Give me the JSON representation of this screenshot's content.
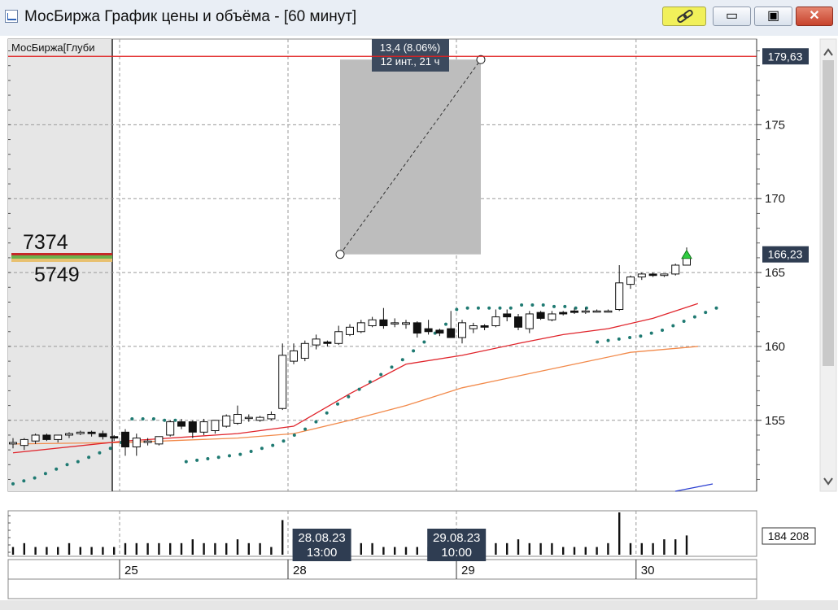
{
  "window": {
    "title": "МосБиржа График цены и объёма - [60 минут]",
    "icons": [
      "chart-app-icon",
      "link-icon",
      "minimize-icon",
      "maximize-icon",
      "close-icon"
    ],
    "controls": {
      "minimize": "▭",
      "maximize": "▣",
      "close": "✕"
    }
  },
  "chart_data": {
    "type": "candlestick",
    "panel_label": "МосБиржа[Глуби",
    "y_ticks": [
      "175",
      "170",
      "165",
      "160",
      "155"
    ],
    "ylim": [
      150.2,
      180.8
    ],
    "grid": true,
    "price_line": {
      "label": "179,63",
      "value": 179.63,
      "color": "#e02020"
    },
    "last_price": {
      "label": "166,23",
      "value": 166.23
    },
    "order_book": {
      "bid": "7374",
      "ask": "5749"
    },
    "measurement": {
      "line1": "13,4 (8.06%)",
      "line2": "12 инт., 21 ч",
      "from": 166.23,
      "to": 179.63
    },
    "x_labels": [
      "25",
      "28",
      "29",
      "30"
    ],
    "date_tags": [
      {
        "date": "28.08.23",
        "time": "13:00"
      },
      {
        "date": "29.08.23",
        "time": "10:00"
      }
    ],
    "volume_label": "184 208",
    "candles": [
      {
        "o": 153.4,
        "h": 153.8,
        "l": 153.1,
        "c": 153.5
      },
      {
        "o": 153.3,
        "h": 153.8,
        "l": 153.0,
        "c": 153.7
      },
      {
        "o": 153.6,
        "h": 154.1,
        "l": 153.4,
        "c": 154.0
      },
      {
        "o": 154.0,
        "h": 154.1,
        "l": 153.6,
        "c": 153.7
      },
      {
        "o": 153.7,
        "h": 154.0,
        "l": 153.5,
        "c": 154.0
      },
      {
        "o": 154.0,
        "h": 154.2,
        "l": 153.8,
        "c": 154.1
      },
      {
        "o": 154.1,
        "h": 154.3,
        "l": 154.0,
        "c": 154.2
      },
      {
        "o": 154.2,
        "h": 154.3,
        "l": 153.9,
        "c": 154.1
      },
      {
        "o": 154.1,
        "h": 154.3,
        "l": 153.7,
        "c": 153.9
      },
      {
        "o": 153.9,
        "h": 154.0,
        "l": 153.6,
        "c": 153.8
      },
      {
        "o": 154.2,
        "h": 154.4,
        "l": 152.6,
        "c": 153.2
      },
      {
        "o": 153.2,
        "h": 154.1,
        "l": 152.6,
        "c": 153.8
      },
      {
        "o": 153.5,
        "h": 153.8,
        "l": 153.3,
        "c": 153.6
      },
      {
        "o": 153.4,
        "h": 153.8,
        "l": 153.3,
        "c": 153.9
      },
      {
        "o": 154.0,
        "h": 155.0,
        "l": 153.9,
        "c": 154.9
      },
      {
        "o": 154.9,
        "h": 155.1,
        "l": 154.4,
        "c": 154.6
      },
      {
        "o": 154.9,
        "h": 155.0,
        "l": 153.8,
        "c": 154.2
      },
      {
        "o": 154.2,
        "h": 155.1,
        "l": 154.0,
        "c": 154.9
      },
      {
        "o": 154.3,
        "h": 155.0,
        "l": 154.1,
        "c": 155.0
      },
      {
        "o": 154.6,
        "h": 155.4,
        "l": 154.5,
        "c": 155.3
      },
      {
        "o": 154.8,
        "h": 156.0,
        "l": 154.7,
        "c": 155.4
      },
      {
        "o": 155.2,
        "h": 155.4,
        "l": 154.9,
        "c": 155.2
      },
      {
        "o": 155.0,
        "h": 155.3,
        "l": 154.9,
        "c": 155.2
      },
      {
        "o": 155.1,
        "h": 155.6,
        "l": 155.0,
        "c": 155.4
      },
      {
        "o": 155.8,
        "h": 160.2,
        "l": 155.7,
        "c": 159.4
      },
      {
        "o": 159.0,
        "h": 160.2,
        "l": 158.8,
        "c": 159.7
      },
      {
        "o": 159.2,
        "h": 160.4,
        "l": 159.0,
        "c": 160.2
      },
      {
        "o": 160.1,
        "h": 160.8,
        "l": 159.8,
        "c": 160.5
      },
      {
        "o": 160.3,
        "h": 160.4,
        "l": 160.0,
        "c": 160.2
      },
      {
        "o": 160.2,
        "h": 161.4,
        "l": 160.1,
        "c": 161.0
      },
      {
        "o": 160.8,
        "h": 161.5,
        "l": 160.7,
        "c": 161.3
      },
      {
        "o": 161.0,
        "h": 161.8,
        "l": 160.9,
        "c": 161.6
      },
      {
        "o": 161.4,
        "h": 162.0,
        "l": 161.3,
        "c": 161.8
      },
      {
        "o": 161.8,
        "h": 162.6,
        "l": 161.2,
        "c": 161.4
      },
      {
        "o": 161.6,
        "h": 161.9,
        "l": 161.3,
        "c": 161.6
      },
      {
        "o": 161.5,
        "h": 161.8,
        "l": 161.2,
        "c": 161.6
      },
      {
        "o": 161.6,
        "h": 161.7,
        "l": 160.6,
        "c": 160.9
      },
      {
        "o": 161.2,
        "h": 161.8,
        "l": 160.8,
        "c": 161.0
      },
      {
        "o": 161.1,
        "h": 161.2,
        "l": 160.7,
        "c": 160.9
      },
      {
        "o": 161.2,
        "h": 162.4,
        "l": 160.6,
        "c": 160.6
      },
      {
        "o": 160.6,
        "h": 161.8,
        "l": 160.2,
        "c": 161.6
      },
      {
        "o": 161.2,
        "h": 161.6,
        "l": 160.9,
        "c": 161.4
      },
      {
        "o": 161.4,
        "h": 161.5,
        "l": 161.1,
        "c": 161.3
      },
      {
        "o": 161.4,
        "h": 162.5,
        "l": 161.3,
        "c": 162.0
      },
      {
        "o": 162.2,
        "h": 162.5,
        "l": 161.7,
        "c": 162.0
      },
      {
        "o": 162.0,
        "h": 162.2,
        "l": 161.1,
        "c": 161.3
      },
      {
        "o": 161.2,
        "h": 162.4,
        "l": 160.9,
        "c": 162.2
      },
      {
        "o": 162.3,
        "h": 162.4,
        "l": 161.8,
        "c": 161.9
      },
      {
        "o": 161.8,
        "h": 162.4,
        "l": 161.7,
        "c": 162.2
      },
      {
        "o": 162.3,
        "h": 162.4,
        "l": 162.1,
        "c": 162.2
      },
      {
        "o": 162.4,
        "h": 162.6,
        "l": 162.2,
        "c": 162.3
      },
      {
        "o": 162.4,
        "h": 162.6,
        "l": 162.2,
        "c": 162.4
      },
      {
        "o": 162.4,
        "h": 162.5,
        "l": 162.3,
        "c": 162.4
      },
      {
        "o": 162.4,
        "h": 162.5,
        "l": 162.3,
        "c": 162.4
      },
      {
        "o": 162.5,
        "h": 165.5,
        "l": 162.4,
        "c": 164.3
      },
      {
        "o": 164.2,
        "h": 164.8,
        "l": 163.9,
        "c": 164.7
      },
      {
        "o": 164.7,
        "h": 165.0,
        "l": 164.5,
        "c": 164.9
      },
      {
        "o": 164.9,
        "h": 165.0,
        "l": 164.7,
        "c": 164.8
      },
      {
        "o": 164.8,
        "h": 164.9,
        "l": 164.7,
        "c": 164.9
      },
      {
        "o": 164.9,
        "h": 165.6,
        "l": 164.8,
        "c": 165.5
      },
      {
        "o": 165.5,
        "h": 166.7,
        "l": 165.5,
        "c": 166.1
      }
    ],
    "ma_red": [
      [
        0,
        152.8
      ],
      [
        10,
        153.6
      ],
      [
        20,
        154.1
      ],
      [
        25,
        154.6
      ],
      [
        30,
        156.8
      ],
      [
        35,
        158.8
      ],
      [
        40,
        159.4
      ],
      [
        45,
        160.2
      ],
      [
        49,
        160.8
      ],
      [
        53,
        161.2
      ],
      [
        57,
        161.9
      ],
      [
        61,
        162.9
      ]
    ],
    "ma_orange": [
      [
        0,
        153.4
      ],
      [
        10,
        153.5
      ],
      [
        20,
        153.8
      ],
      [
        25,
        154.1
      ],
      [
        30,
        155.0
      ],
      [
        35,
        156.0
      ],
      [
        40,
        157.2
      ],
      [
        45,
        158.0
      ],
      [
        50,
        158.8
      ],
      [
        55,
        159.6
      ],
      [
        61,
        160.0
      ]
    ],
    "sar": [
      [
        0,
        150.7
      ],
      [
        1,
        150.9
      ],
      [
        2,
        151.1
      ],
      [
        3,
        151.4
      ],
      [
        4,
        151.7
      ],
      [
        5,
        152.0
      ],
      [
        6,
        152.2
      ],
      [
        7,
        152.5
      ],
      [
        8,
        152.8
      ],
      [
        9,
        153.1
      ],
      [
        10,
        153.5
      ],
      [
        11,
        155.1
      ],
      [
        12,
        155.1
      ],
      [
        13,
        155.1
      ],
      [
        14,
        155.0
      ],
      [
        15,
        155.0
      ],
      [
        16,
        152.2
      ],
      [
        17,
        152.3
      ],
      [
        18,
        152.4
      ],
      [
        19,
        152.5
      ],
      [
        20,
        152.6
      ],
      [
        21,
        152.7
      ],
      [
        22,
        152.9
      ],
      [
        23,
        153.1
      ],
      [
        24,
        153.3
      ],
      [
        25,
        153.6
      ],
      [
        26,
        154.0
      ],
      [
        27,
        154.4
      ],
      [
        28,
        154.9
      ],
      [
        29,
        155.5
      ],
      [
        30,
        156.1
      ],
      [
        31,
        156.6
      ],
      [
        32,
        157.1
      ],
      [
        33,
        157.6
      ],
      [
        34,
        158.1
      ],
      [
        35,
        158.6
      ],
      [
        36,
        159.1
      ],
      [
        37,
        159.7
      ],
      [
        38,
        160.3
      ],
      [
        39,
        160.9
      ],
      [
        40,
        161.5
      ],
      [
        41,
        162.5
      ],
      [
        42,
        162.6
      ],
      [
        43,
        162.6
      ],
      [
        44,
        162.6
      ],
      [
        45,
        162.6
      ],
      [
        46,
        162.6
      ],
      [
        47,
        162.8
      ],
      [
        48,
        162.8
      ],
      [
        49,
        162.8
      ],
      [
        50,
        162.7
      ],
      [
        51,
        162.7
      ],
      [
        52,
        162.6
      ],
      [
        53,
        162.6
      ],
      [
        54,
        160.3
      ],
      [
        55,
        160.4
      ],
      [
        56,
        160.5
      ],
      [
        57,
        160.6
      ],
      [
        58,
        160.7
      ],
      [
        59,
        160.9
      ],
      [
        60,
        161.1
      ],
      [
        61,
        161.4
      ],
      [
        62,
        161.7
      ],
      [
        63,
        162.0
      ],
      [
        64,
        162.3
      ],
      [
        65,
        162.6
      ]
    ],
    "volumes": [
      2,
      3,
      2,
      2,
      2,
      3,
      2,
      2,
      2,
      2,
      3,
      3,
      3,
      3,
      3,
      3,
      4,
      3,
      3,
      3,
      4,
      3,
      3,
      2,
      9,
      4,
      3,
      3,
      2,
      3,
      3,
      3,
      3,
      2,
      2,
      2,
      2,
      2,
      3,
      3,
      3,
      3,
      2,
      3,
      3,
      4,
      3,
      3,
      3,
      2,
      2,
      2,
      2,
      3,
      11,
      3,
      3,
      3,
      4,
      4,
      5
    ]
  }
}
